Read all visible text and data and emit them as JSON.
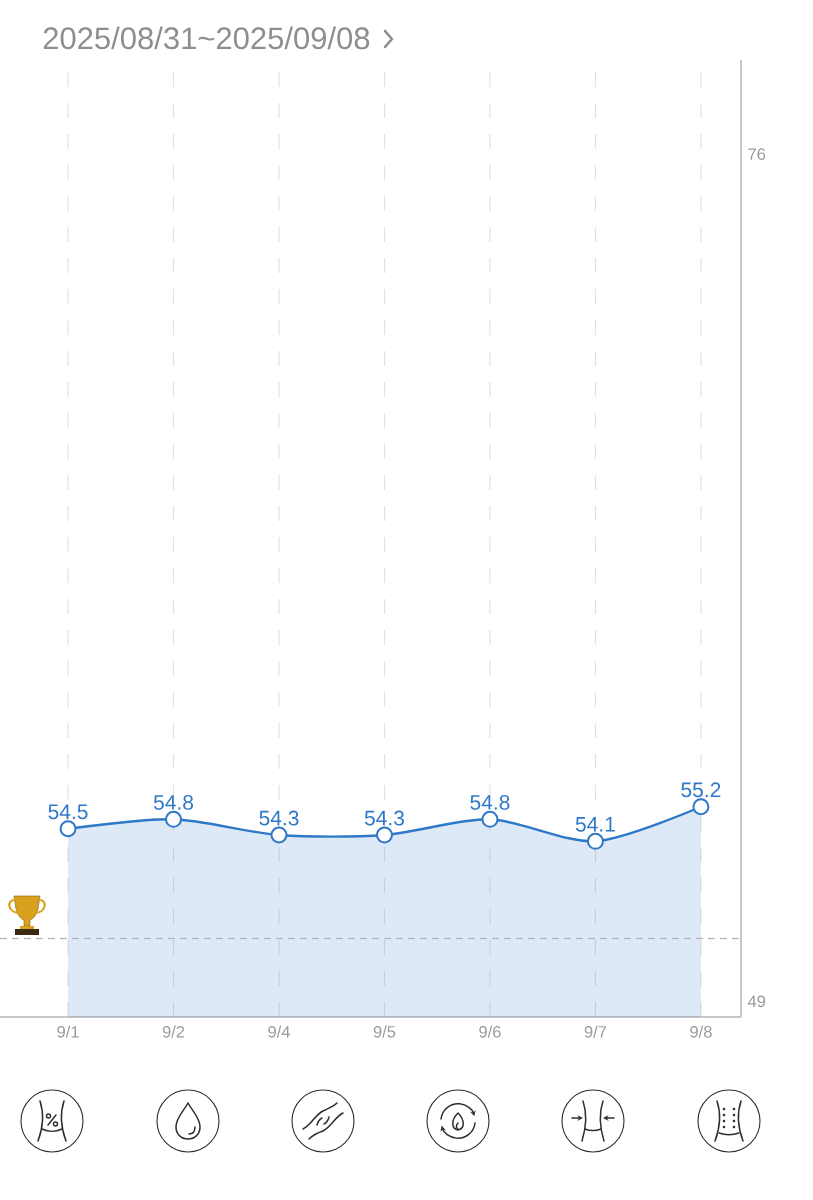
{
  "chart_data": {
    "type": "area",
    "title": "2025/08/31~2025/09/08",
    "categories": [
      "9/1",
      "9/2",
      "9/4",
      "9/5",
      "9/6",
      "9/7",
      "9/8"
    ],
    "values": [
      54.5,
      54.8,
      54.3,
      54.3,
      54.8,
      54.1,
      55.2
    ],
    "color": "#2e78c8",
    "ylim": [
      48.5,
      79
    ],
    "yticks": [
      49,
      76
    ],
    "grid": "x",
    "marker": "circle",
    "data_labels": true,
    "ref_lines": [
      {
        "axis": "y",
        "value": 51,
        "color": "#b4b4b4",
        "line_style": "dashed"
      }
    ]
  }
}
